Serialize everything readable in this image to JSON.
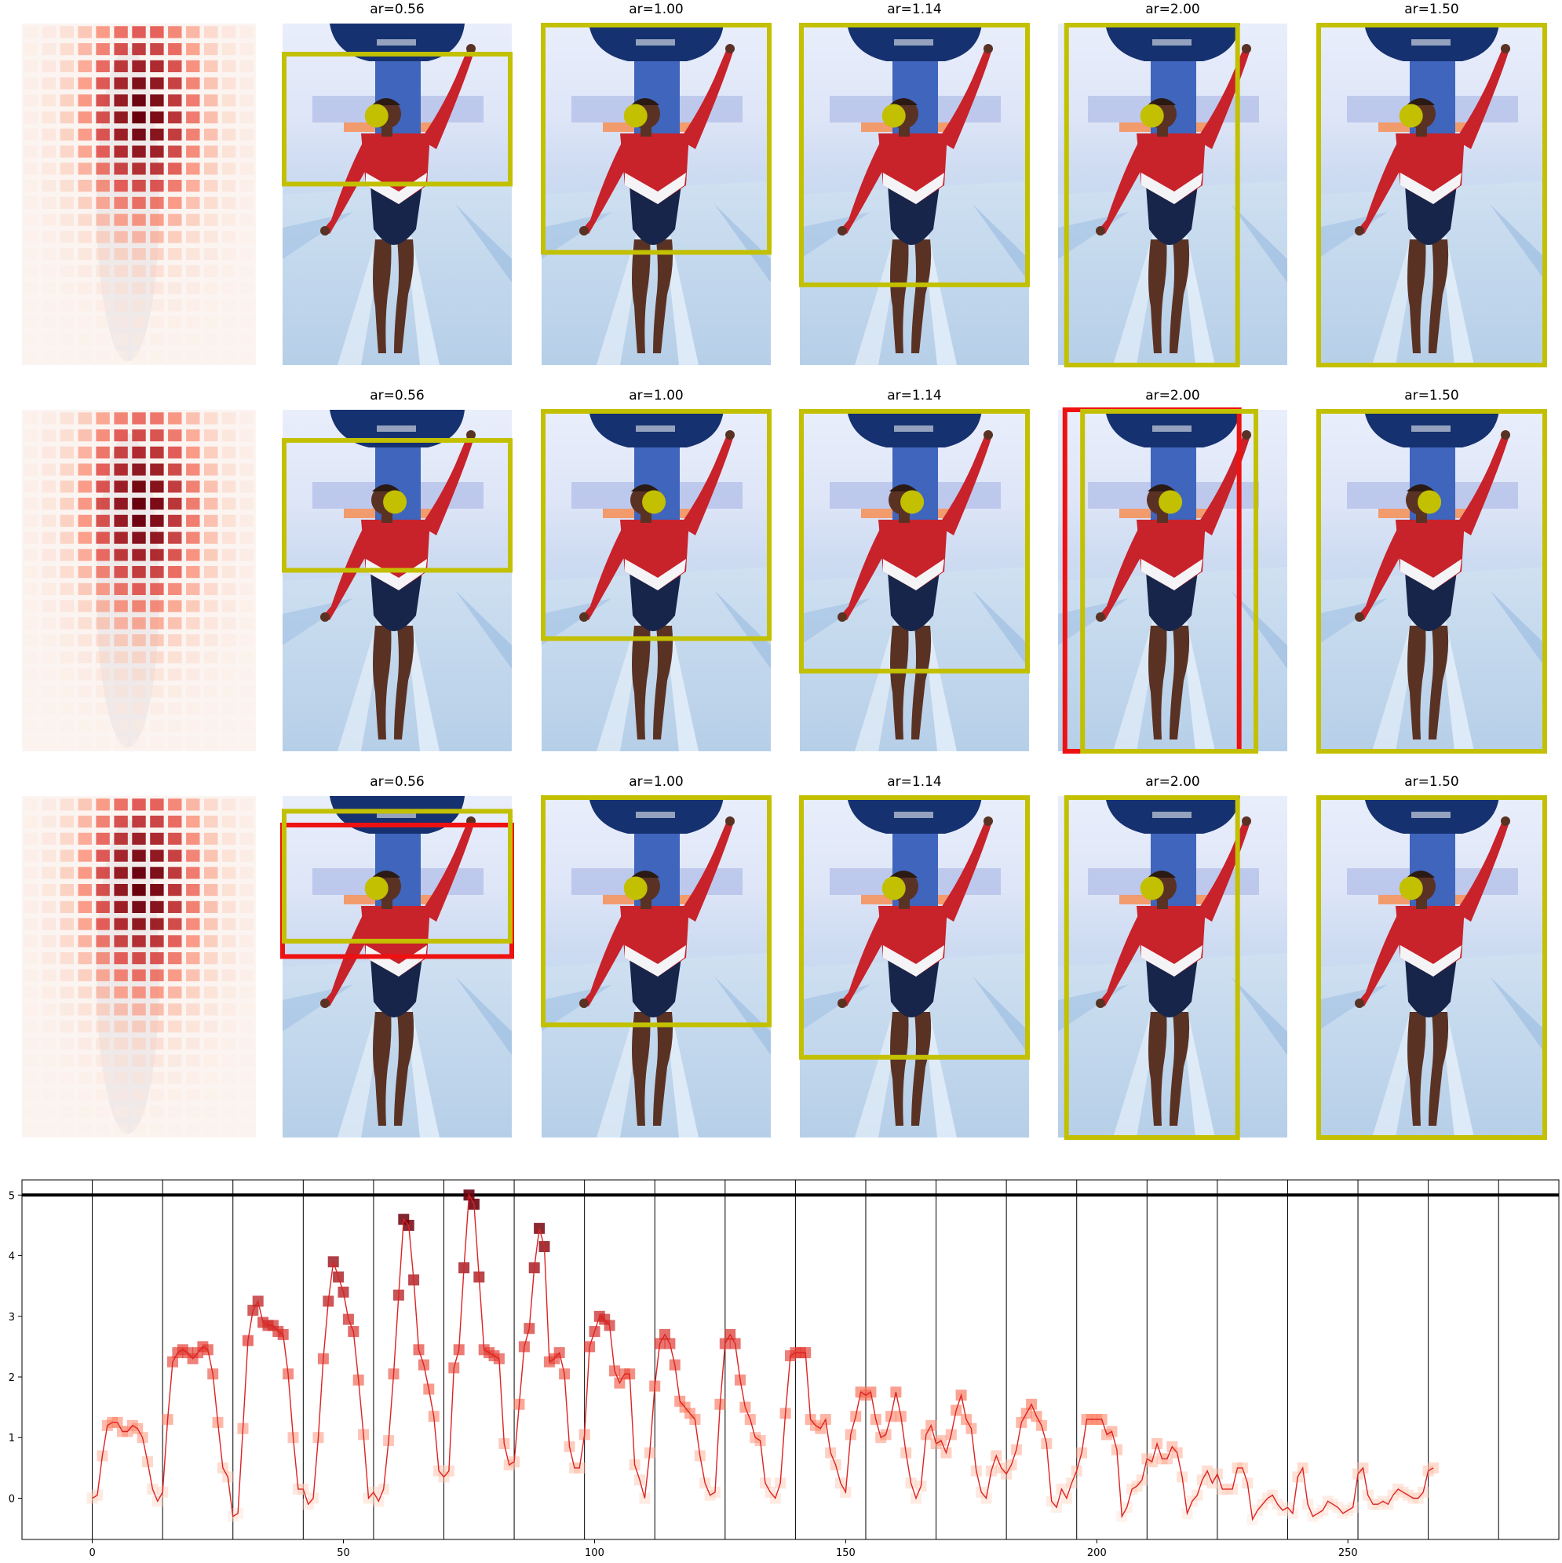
{
  "chart_data": [
    {
      "type": "heatmap+image-grid",
      "rows": 3,
      "panel_titles": [
        "ar=0.56",
        "ar=1.00",
        "ar=1.14",
        "ar=2.00",
        "ar=1.50"
      ],
      "grid": {
        "cols": 13,
        "rows": 20
      },
      "marker_color": "#c2c000",
      "alt_box_color": "#ee1111"
    },
    {
      "type": "line",
      "series": [
        {
          "x_start": 0,
          "x_step": 1,
          "values": [
            0.0,
            0.05,
            0.7,
            1.2,
            1.25,
            1.25,
            1.1,
            1.1,
            1.2,
            1.15,
            1.0,
            0.6,
            0.15,
            -0.05,
            0.1,
            1.3,
            2.25,
            2.4,
            2.45,
            2.4,
            2.3,
            2.4,
            2.5,
            2.45,
            2.05,
            1.25,
            0.5,
            0.35,
            -0.3,
            -0.25,
            1.15,
            2.6,
            3.1,
            3.25,
            2.9,
            2.85,
            2.85,
            2.75,
            2.7,
            2.05,
            1.0,
            0.15,
            0.15,
            -0.1,
            0.0,
            1.0,
            2.3,
            3.25,
            3.9,
            3.65,
            3.4,
            2.95,
            2.75,
            1.95,
            1.05,
            0.0,
            0.1,
            -0.05,
            0.15,
            0.95,
            2.05,
            3.35,
            4.6,
            4.5,
            3.6,
            2.45,
            2.2,
            1.8,
            1.35,
            0.45,
            0.35,
            0.45,
            2.15,
            2.45,
            3.8,
            5.0,
            4.85,
            3.65,
            2.45,
            2.4,
            2.35,
            2.3,
            0.9,
            0.55,
            0.6,
            1.55,
            2.5,
            2.8,
            3.8,
            4.45,
            4.15,
            2.25,
            2.3,
            2.4,
            2.05,
            0.85,
            0.5,
            0.5,
            1.05,
            2.5,
            2.75,
            3.0,
            2.95,
            2.85,
            2.1,
            1.9,
            2.05,
            2.05,
            0.55,
            0.3,
            0.0,
            0.75,
            1.85,
            2.55,
            2.7,
            2.55,
            2.2,
            1.6,
            1.5,
            1.4,
            1.3,
            0.7,
            0.25,
            0.05,
            0.1,
            1.55,
            2.55,
            2.7,
            2.55,
            1.95,
            1.5,
            1.3,
            1.0,
            0.95,
            0.25,
            0.1,
            0.0,
            0.25,
            1.4,
            2.35,
            2.4,
            2.4,
            2.4,
            1.3,
            1.2,
            1.15,
            1.3,
            0.75,
            0.55,
            0.25,
            0.1,
            1.05,
            1.35,
            1.75,
            1.7,
            1.75,
            1.3,
            1.0,
            1.05,
            1.35,
            1.75,
            1.35,
            0.75,
            0.25,
            0.0,
            0.2,
            1.05,
            1.2,
            0.9,
            0.95,
            0.75,
            1.05,
            1.45,
            1.7,
            1.3,
            1.15,
            0.45,
            0.1,
            0.0,
            0.45,
            0.7,
            0.5,
            0.4,
            0.55,
            0.8,
            1.25,
            1.4,
            1.55,
            1.35,
            1.2,
            0.9,
            -0.05,
            -0.15,
            0.15,
            0.0,
            0.25,
            0.45,
            0.75,
            1.3,
            1.3,
            1.3,
            1.3,
            1.05,
            1.1,
            0.8,
            -0.3,
            -0.15,
            0.15,
            0.2,
            0.3,
            0.65,
            0.6,
            0.9,
            0.65,
            0.65,
            0.85,
            0.75,
            0.35,
            -0.25,
            -0.05,
            0.05,
            0.3,
            0.45,
            0.25,
            0.4,
            0.15,
            0.15,
            0.15,
            0.5,
            0.5,
            0.25,
            -0.35,
            -0.2,
            -0.1,
            0.0,
            0.05,
            -0.1,
            -0.2,
            -0.15,
            -0.25,
            0.35,
            0.5,
            -0.1,
            -0.3,
            -0.25,
            -0.2,
            -0.05,
            -0.1,
            -0.15,
            -0.25,
            -0.2,
            -0.15,
            0.4,
            0.5,
            0.05,
            -0.1,
            -0.1,
            -0.05,
            -0.1,
            0.05,
            0.15,
            0.1,
            0.05,
            0.0,
            0.0,
            0.1,
            0.45,
            0.5
          ]
        }
      ],
      "xlim": [
        -14,
        292
      ],
      "ylim": [
        -0.68,
        5.25
      ],
      "xticks": [
        "0",
        "50",
        "100",
        "150",
        "200",
        "250"
      ],
      "xtick_values": [
        0,
        50,
        100,
        150,
        200,
        250
      ],
      "yticks": [
        "0",
        "1",
        "2",
        "3",
        "4",
        "5"
      ],
      "ytick_values": [
        0,
        1,
        2,
        3,
        4,
        5
      ],
      "hline": 5.0,
      "vlines_every": 14,
      "line_color": "#dd2222"
    }
  ]
}
